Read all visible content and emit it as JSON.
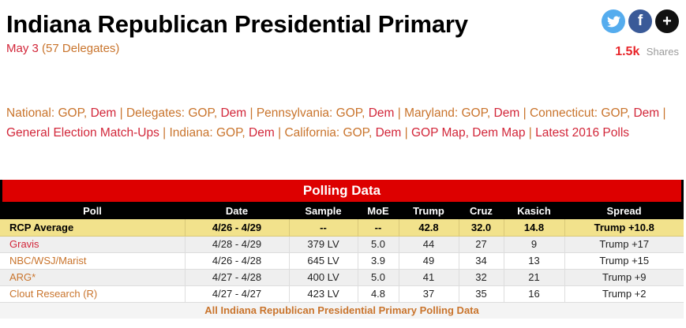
{
  "page": {
    "title": "Indiana Republican Presidential Primary",
    "date": "May 3",
    "delegates": "(57 Delegates)"
  },
  "share": {
    "count": "1.5k",
    "label": "Shares",
    "facebook_glyph": "f",
    "more_glyph": "+",
    "icons": [
      "twitter-icon",
      "facebook-icon",
      "plus-icon"
    ]
  },
  "nav": {
    "lines": [
      [
        {
          "t": "National: GOP,",
          "c": "o"
        },
        {
          "t": "Dem",
          "c": "r"
        },
        {
          "t": "|",
          "c": "p"
        },
        {
          "t": "Delegates: GOP,",
          "c": "o"
        },
        {
          "t": "Dem",
          "c": "r"
        },
        {
          "t": "|",
          "c": "p"
        },
        {
          "t": "Pennsylvania: GOP,",
          "c": "o"
        },
        {
          "t": "Dem",
          "c": "r"
        },
        {
          "t": "|",
          "c": "p"
        },
        {
          "t": "Maryland: GOP,",
          "c": "o"
        },
        {
          "t": "Dem",
          "c": "r"
        },
        {
          "t": "|",
          "c": "p"
        },
        {
          "t": "Connecticut: GOP,",
          "c": "o"
        },
        {
          "t": "Dem",
          "c": "r"
        },
        {
          "t": "|",
          "c": "p"
        }
      ],
      [
        {
          "t": "General Election Match-Ups",
          "c": "r"
        },
        {
          "t": "|",
          "c": "p"
        },
        {
          "t": "Indiana: GOP,",
          "c": "o"
        },
        {
          "t": "Dem",
          "c": "r"
        },
        {
          "t": "|",
          "c": "p"
        },
        {
          "t": "California: GOP,",
          "c": "o"
        },
        {
          "t": "Dem",
          "c": "r"
        },
        {
          "t": "|",
          "c": "p"
        },
        {
          "t": "GOP Map,",
          "c": "r"
        },
        {
          "t": "Dem Map",
          "c": "r"
        },
        {
          "t": "|",
          "c": "p"
        },
        {
          "t": "Latest 2016 Polls",
          "c": "r"
        }
      ]
    ]
  },
  "table": {
    "title": "Polling Data",
    "columns": [
      "Poll",
      "Date",
      "Sample",
      "MoE",
      "Trump",
      "Cruz",
      "Kasich",
      "Spread"
    ],
    "rcp_average": {
      "poll": "RCP Average",
      "date": "4/26 - 4/29",
      "sample": "--",
      "moe": "--",
      "trump": "42.8",
      "cruz": "32.0",
      "kasich": "14.8",
      "spread": "Trump +10.8"
    },
    "rows": [
      {
        "poll": "Gravis",
        "poll_color": "red",
        "date": "4/28 - 4/29",
        "sample": "379 LV",
        "moe": "5.0",
        "trump": "44",
        "cruz": "27",
        "kasich": "9",
        "spread": "Trump +17"
      },
      {
        "poll": "NBC/WSJ/Marist",
        "poll_color": "orange",
        "date": "4/26 - 4/28",
        "sample": "645 LV",
        "moe": "3.9",
        "trump": "49",
        "cruz": "34",
        "kasich": "13",
        "spread": "Trump +15"
      },
      {
        "poll": "ARG*",
        "poll_color": "orange",
        "date": "4/27 - 4/28",
        "sample": "400 LV",
        "moe": "5.0",
        "trump": "41",
        "cruz": "32",
        "kasich": "21",
        "spread": "Trump +9"
      },
      {
        "poll": "Clout Research (R)",
        "poll_color": "orange",
        "date": "4/27 - 4/27",
        "sample": "423 LV",
        "moe": "4.8",
        "trump": "37",
        "cruz": "35",
        "kasich": "16",
        "spread": "Trump +2"
      }
    ],
    "footer_link": "All Indiana Republican Presidential Primary Polling Data"
  },
  "colors": {
    "accent_red": "#dd0000",
    "link_orange": "#c9742c",
    "link_red": "#d22639",
    "rcp_row_yellow": "#f2e28c",
    "twitter_blue": "#55acee",
    "facebook_blue": "#3a5a98",
    "share_count_red": "#e8252a"
  }
}
